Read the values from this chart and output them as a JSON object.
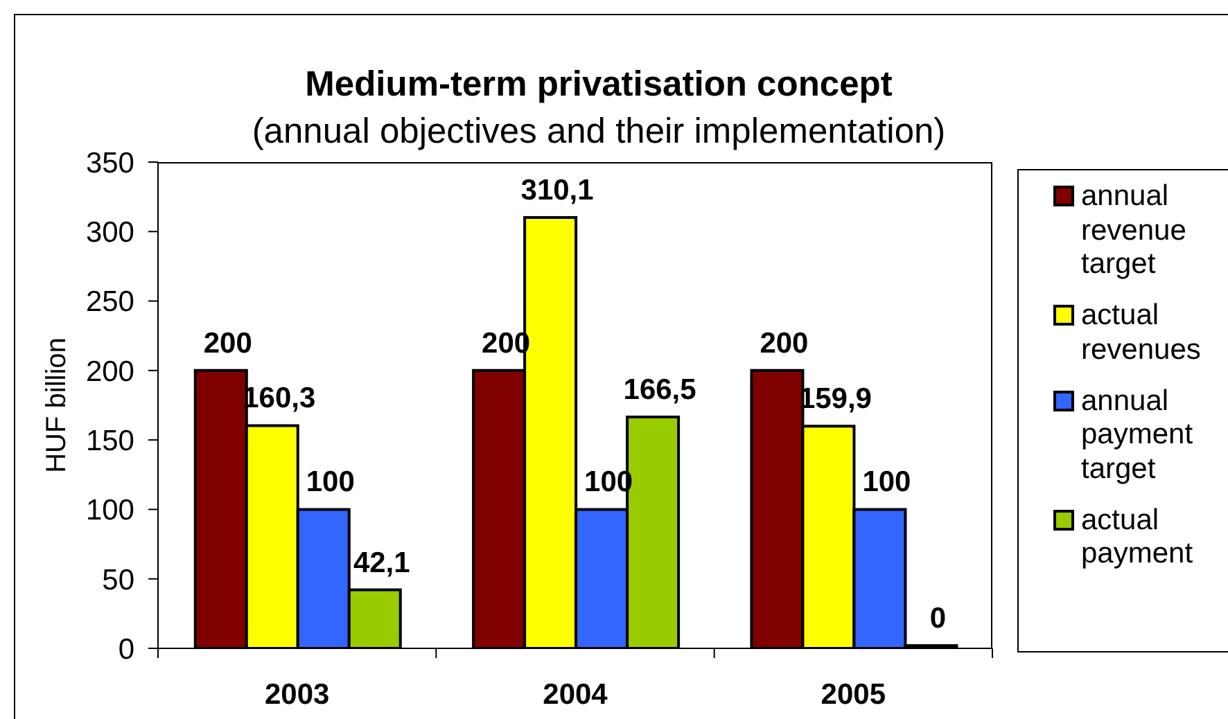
{
  "chart_data": {
    "type": "bar",
    "title": "Medium-term privatisation concept",
    "subtitle": "(annual objectives and their implementation)",
    "ylabel": "HUF billion",
    "categories": [
      "2003",
      "2004",
      "2005"
    ],
    "series": [
      {
        "name": "annual revenue target",
        "color": "#800000",
        "values": [
          200,
          200,
          200
        ],
        "value_labels": [
          "200",
          "200",
          "200"
        ]
      },
      {
        "name": "actual revenues",
        "color": "#ffff00",
        "values": [
          160.3,
          310.1,
          159.9
        ],
        "value_labels": [
          "160,3",
          "310,1",
          "159,9"
        ]
      },
      {
        "name": "annual payment target",
        "color": "#3366ff",
        "values": [
          100,
          100,
          100
        ],
        "value_labels": [
          "100",
          "100",
          "100"
        ]
      },
      {
        "name": "actual payment",
        "color": "#99cc00",
        "values": [
          42.1,
          166.5,
          0
        ],
        "value_labels": [
          "42,1",
          "166,5",
          "0"
        ]
      }
    ],
    "ylim": [
      0,
      350
    ],
    "yticks": [
      0,
      50,
      100,
      150,
      200,
      250,
      300,
      350
    ],
    "legend": "right"
  }
}
